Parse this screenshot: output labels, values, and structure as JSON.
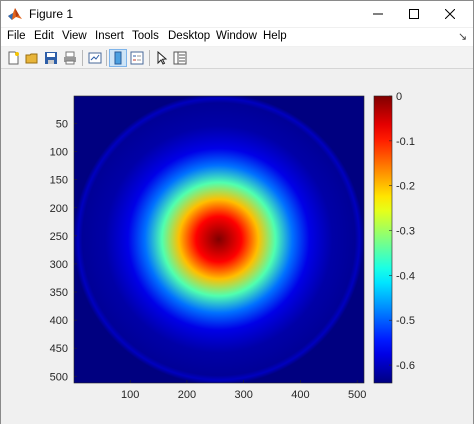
{
  "window": {
    "title": "Figure 1"
  },
  "menu": [
    {
      "label": "File"
    },
    {
      "label": "Edit"
    },
    {
      "label": "View"
    },
    {
      "label": "Insert"
    },
    {
      "label": "Tools"
    },
    {
      "label": "Desktop"
    },
    {
      "label": "Window"
    },
    {
      "label": "Help"
    }
  ],
  "toolbar": {
    "icons": [
      "new-figure-icon",
      "open-file-icon",
      "save-icon",
      "print-icon",
      "link-plot-icon",
      "insert-colorbar-icon",
      "insert-legend-icon",
      "edit-plot-icon",
      "property-inspector-icon"
    ]
  },
  "chart_data": {
    "type": "heatmap",
    "description_values": "radially symmetric field, maximum 0 at center, decreasing outward to about -0.63",
    "center": [
      256,
      256
    ],
    "x_ticks": [
      "100",
      "200",
      "300",
      "400",
      "500"
    ],
    "y_ticks": [
      "50",
      "100",
      "150",
      "200",
      "250",
      "300",
      "350",
      "400",
      "450",
      "500"
    ],
    "xlim": [
      1,
      512
    ],
    "ylim": [
      1,
      512
    ],
    "y_direction": "reverse",
    "colormap": "jet",
    "colorbar": {
      "ticks": [
        "0",
        "-0.1",
        "-0.2",
        "-0.3",
        "-0.4",
        "-0.5",
        "-0.6"
      ],
      "range": [
        -0.64,
        0
      ]
    },
    "radial_profile": [
      {
        "r": 0,
        "v": 0
      },
      {
        "r": 40,
        "v": -0.08
      },
      {
        "r": 70,
        "v": -0.2
      },
      {
        "r": 100,
        "v": -0.35
      },
      {
        "r": 130,
        "v": -0.49
      },
      {
        "r": 160,
        "v": -0.575
      },
      {
        "r": 200,
        "v": -0.615
      },
      {
        "r": 240,
        "v": -0.625
      },
      {
        "r": 248,
        "v": -0.6
      },
      {
        "r": 256,
        "v": -0.64
      }
    ]
  }
}
